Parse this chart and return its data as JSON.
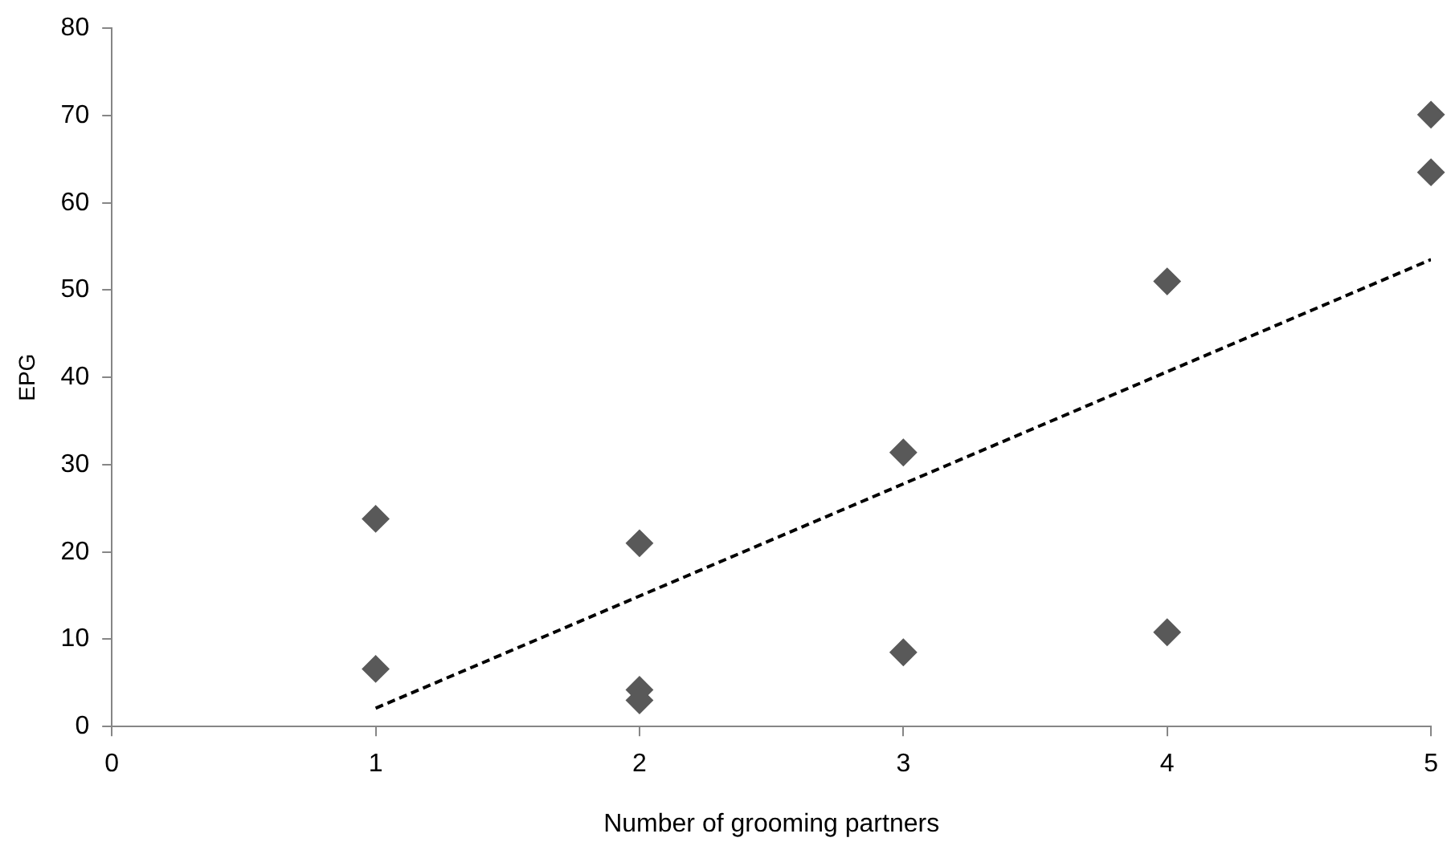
{
  "chart_data": {
    "type": "scatter",
    "xlabel": "Number of grooming partners",
    "ylabel": "EPG",
    "xlim": [
      0,
      5
    ],
    "xticks": [
      0,
      1,
      2,
      3,
      4,
      5
    ],
    "ylim": [
      0,
      80
    ],
    "yticks": [
      0,
      10,
      20,
      30,
      40,
      50,
      60,
      70,
      80
    ],
    "grid": false,
    "legend": false,
    "series": [
      {
        "marker": "diamond",
        "color": "#595959",
        "x": [
          1,
          1,
          2,
          2,
          2,
          3,
          3,
          4,
          4,
          5,
          5
        ],
        "values": [
          23.8,
          6.6,
          21.0,
          4.2,
          3.0,
          31.4,
          8.5,
          51.0,
          10.8,
          70.1,
          63.5
        ]
      },
      {
        "type": "line",
        "marker": "none",
        "color": "#000000",
        "line_style": "dashed",
        "x": [
          1,
          5
        ],
        "values": [
          2.1,
          53.5
        ]
      }
    ]
  }
}
